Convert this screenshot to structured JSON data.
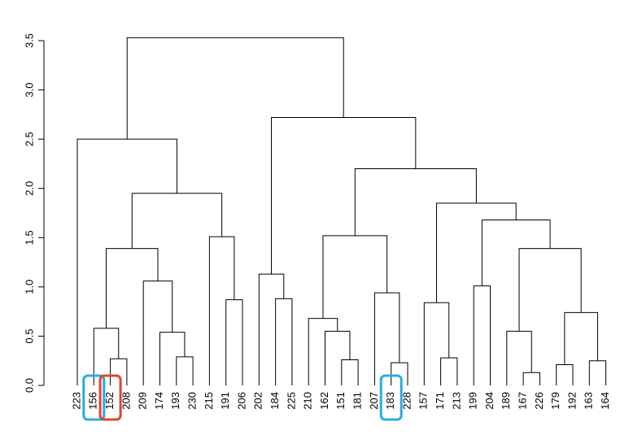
{
  "chart_data": {
    "type": "dendrogram",
    "title": "",
    "xlabel": "",
    "ylabel": "",
    "ylim": [
      0,
      3.5
    ],
    "yticks": [
      0.0,
      0.5,
      1.0,
      1.5,
      2.0,
      2.5,
      3.0,
      3.5
    ],
    "ytick_labels": [
      "0.0",
      "0.5",
      "1.0",
      "1.5",
      "2.0",
      "2.5",
      "3.0",
      "3.5"
    ],
    "leaves": [
      "223",
      "156",
      "152",
      "208",
      "209",
      "174",
      "193",
      "230",
      "215",
      "191",
      "206",
      "202",
      "184",
      "225",
      "210",
      "162",
      "151",
      "181",
      "207",
      "183",
      "228",
      "157",
      "171",
      "213",
      "199",
      "204",
      "189",
      "167",
      "226",
      "179",
      "192",
      "163",
      "164"
    ],
    "merges": [
      {
        "left": 27,
        "right": 28,
        "height": 0.13
      },
      {
        "left": 29,
        "right": 30,
        "height": 0.21
      },
      {
        "left": 19,
        "right": 20,
        "height": 0.23
      },
      {
        "left": 31,
        "right": 32,
        "height": 0.25
      },
      {
        "left": 16,
        "right": 17,
        "height": 0.26
      },
      {
        "left": 2,
        "right": 3,
        "height": 0.27
      },
      {
        "left": 22,
        "right": 23,
        "height": 0.28
      },
      {
        "left": 6,
        "right": 7,
        "height": 0.29
      },
      {
        "left": 5,
        "right": 7,
        "height": 0.54
      },
      {
        "left": 15,
        "right": 17,
        "height": 0.55
      },
      {
        "left": 26,
        "right": 28,
        "height": 0.55
      },
      {
        "left": 1,
        "right": 3,
        "height": 0.58
      },
      {
        "left": 14,
        "right": 17,
        "height": 0.68
      },
      {
        "left": 29,
        "right": 32,
        "height": 0.74
      },
      {
        "left": 21,
        "right": 23,
        "height": 0.84
      },
      {
        "left": 9,
        "right": 10,
        "height": 0.87
      },
      {
        "left": 12,
        "right": 13,
        "height": 0.88
      },
      {
        "left": 18,
        "right": 20,
        "height": 0.94
      },
      {
        "left": 24,
        "right": 25,
        "height": 1.01
      },
      {
        "left": 4,
        "right": 7,
        "height": 1.06
      },
      {
        "left": 11,
        "right": 13,
        "height": 1.13
      },
      {
        "left": 1,
        "right": 7,
        "height": 1.39
      },
      {
        "left": 26,
        "right": 32,
        "height": 1.39
      },
      {
        "left": 8,
        "right": 10,
        "height": 1.51
      },
      {
        "left": 14,
        "right": 20,
        "height": 1.52
      },
      {
        "left": 24,
        "right": 32,
        "height": 1.68
      },
      {
        "left": 21,
        "right": 32,
        "height": 1.85
      },
      {
        "left": 1,
        "right": 10,
        "height": 1.95
      },
      {
        "left": 14,
        "right": 32,
        "height": 2.2
      },
      {
        "left": 0,
        "right": 10,
        "height": 2.5
      },
      {
        "left": 11,
        "right": 32,
        "height": 2.72
      },
      {
        "left": 0,
        "right": 32,
        "height": 3.53
      }
    ],
    "highlights": [
      {
        "leaf": "156",
        "color": "#29abe2"
      },
      {
        "leaf": "152",
        "color": "#e0452b"
      },
      {
        "leaf": "183",
        "color": "#29abe2"
      }
    ]
  }
}
